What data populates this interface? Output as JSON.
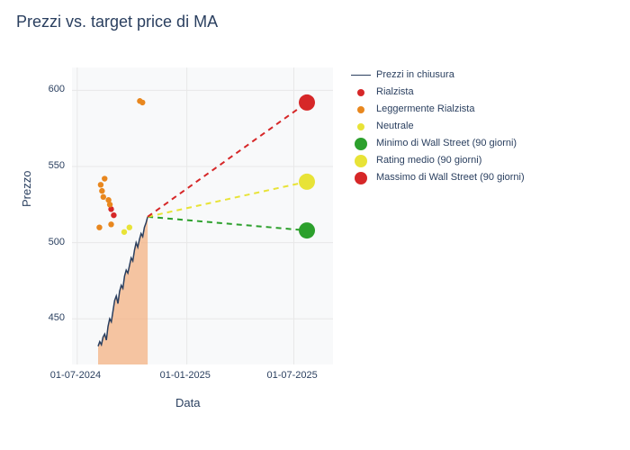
{
  "title": "Prezzi vs. target price di MA",
  "xlabel": "Data",
  "ylabel": "Prezzo",
  "background_color": "#ffffff",
  "plot_bg_color": "#f8f9fa",
  "grid_color": "#e8e8e8",
  "text_color": "#2a3f5f",
  "yaxis": {
    "ticks": [
      450,
      500,
      550,
      600
    ],
    "min": 420,
    "max": 615
  },
  "xaxis": {
    "ticks": [
      "01-07-2024",
      "01-01-2025",
      "01-07-2025"
    ],
    "tick_t": [
      0.02,
      0.44,
      0.85
    ]
  },
  "series": {
    "closing": {
      "label": "Prezzi in chiusura",
      "color": "#2a3f5f",
      "fill_color": "#f4b183",
      "t_start": 0.1,
      "t_end": 0.29,
      "values": [
        432,
        435,
        433,
        438,
        440,
        436,
        445,
        450,
        448,
        455,
        462,
        465,
        460,
        468,
        472,
        470,
        478,
        482,
        480,
        485,
        490,
        488,
        495,
        500,
        497,
        502,
        506,
        504,
        510,
        513,
        517
      ]
    },
    "rialzista": {
      "label": "Rialzista",
      "color": "#d62728",
      "points": [
        {
          "t": 0.15,
          "y": 522
        },
        {
          "t": 0.16,
          "y": 518
        }
      ]
    },
    "legg_rialzista": {
      "label": "Leggermente Rialzista",
      "color": "#e8871e",
      "points": [
        {
          "t": 0.105,
          "y": 510
        },
        {
          "t": 0.11,
          "y": 538
        },
        {
          "t": 0.115,
          "y": 534
        },
        {
          "t": 0.12,
          "y": 530
        },
        {
          "t": 0.125,
          "y": 542
        },
        {
          "t": 0.14,
          "y": 528
        },
        {
          "t": 0.145,
          "y": 525
        },
        {
          "t": 0.15,
          "y": 512
        },
        {
          "t": 0.26,
          "y": 593
        },
        {
          "t": 0.27,
          "y": 592
        }
      ]
    },
    "neutrale": {
      "label": "Neutrale",
      "color": "#e8e337",
      "points": [
        {
          "t": 0.2,
          "y": 507
        },
        {
          "t": 0.22,
          "y": 510
        }
      ]
    },
    "minimo": {
      "label": "Minimo di Wall Street (90 giorni)",
      "color": "#2ca02c",
      "target_t": 0.9,
      "target_y": 508
    },
    "medio": {
      "label": "Rating medio (90 giorni)",
      "color": "#e8e337",
      "target_t": 0.9,
      "target_y": 540
    },
    "massimo": {
      "label": "Massimo di Wall Street (90 giorni)",
      "color": "#d62728",
      "target_t": 0.9,
      "target_y": 592
    }
  },
  "legend_order": [
    "closing",
    "rialzista",
    "legg_rialzista",
    "neutrale",
    "minimo",
    "medio",
    "massimo"
  ],
  "title_fontsize": 18,
  "label_fontsize": 13,
  "tick_fontsize": 11,
  "legend_fontsize": 11
}
